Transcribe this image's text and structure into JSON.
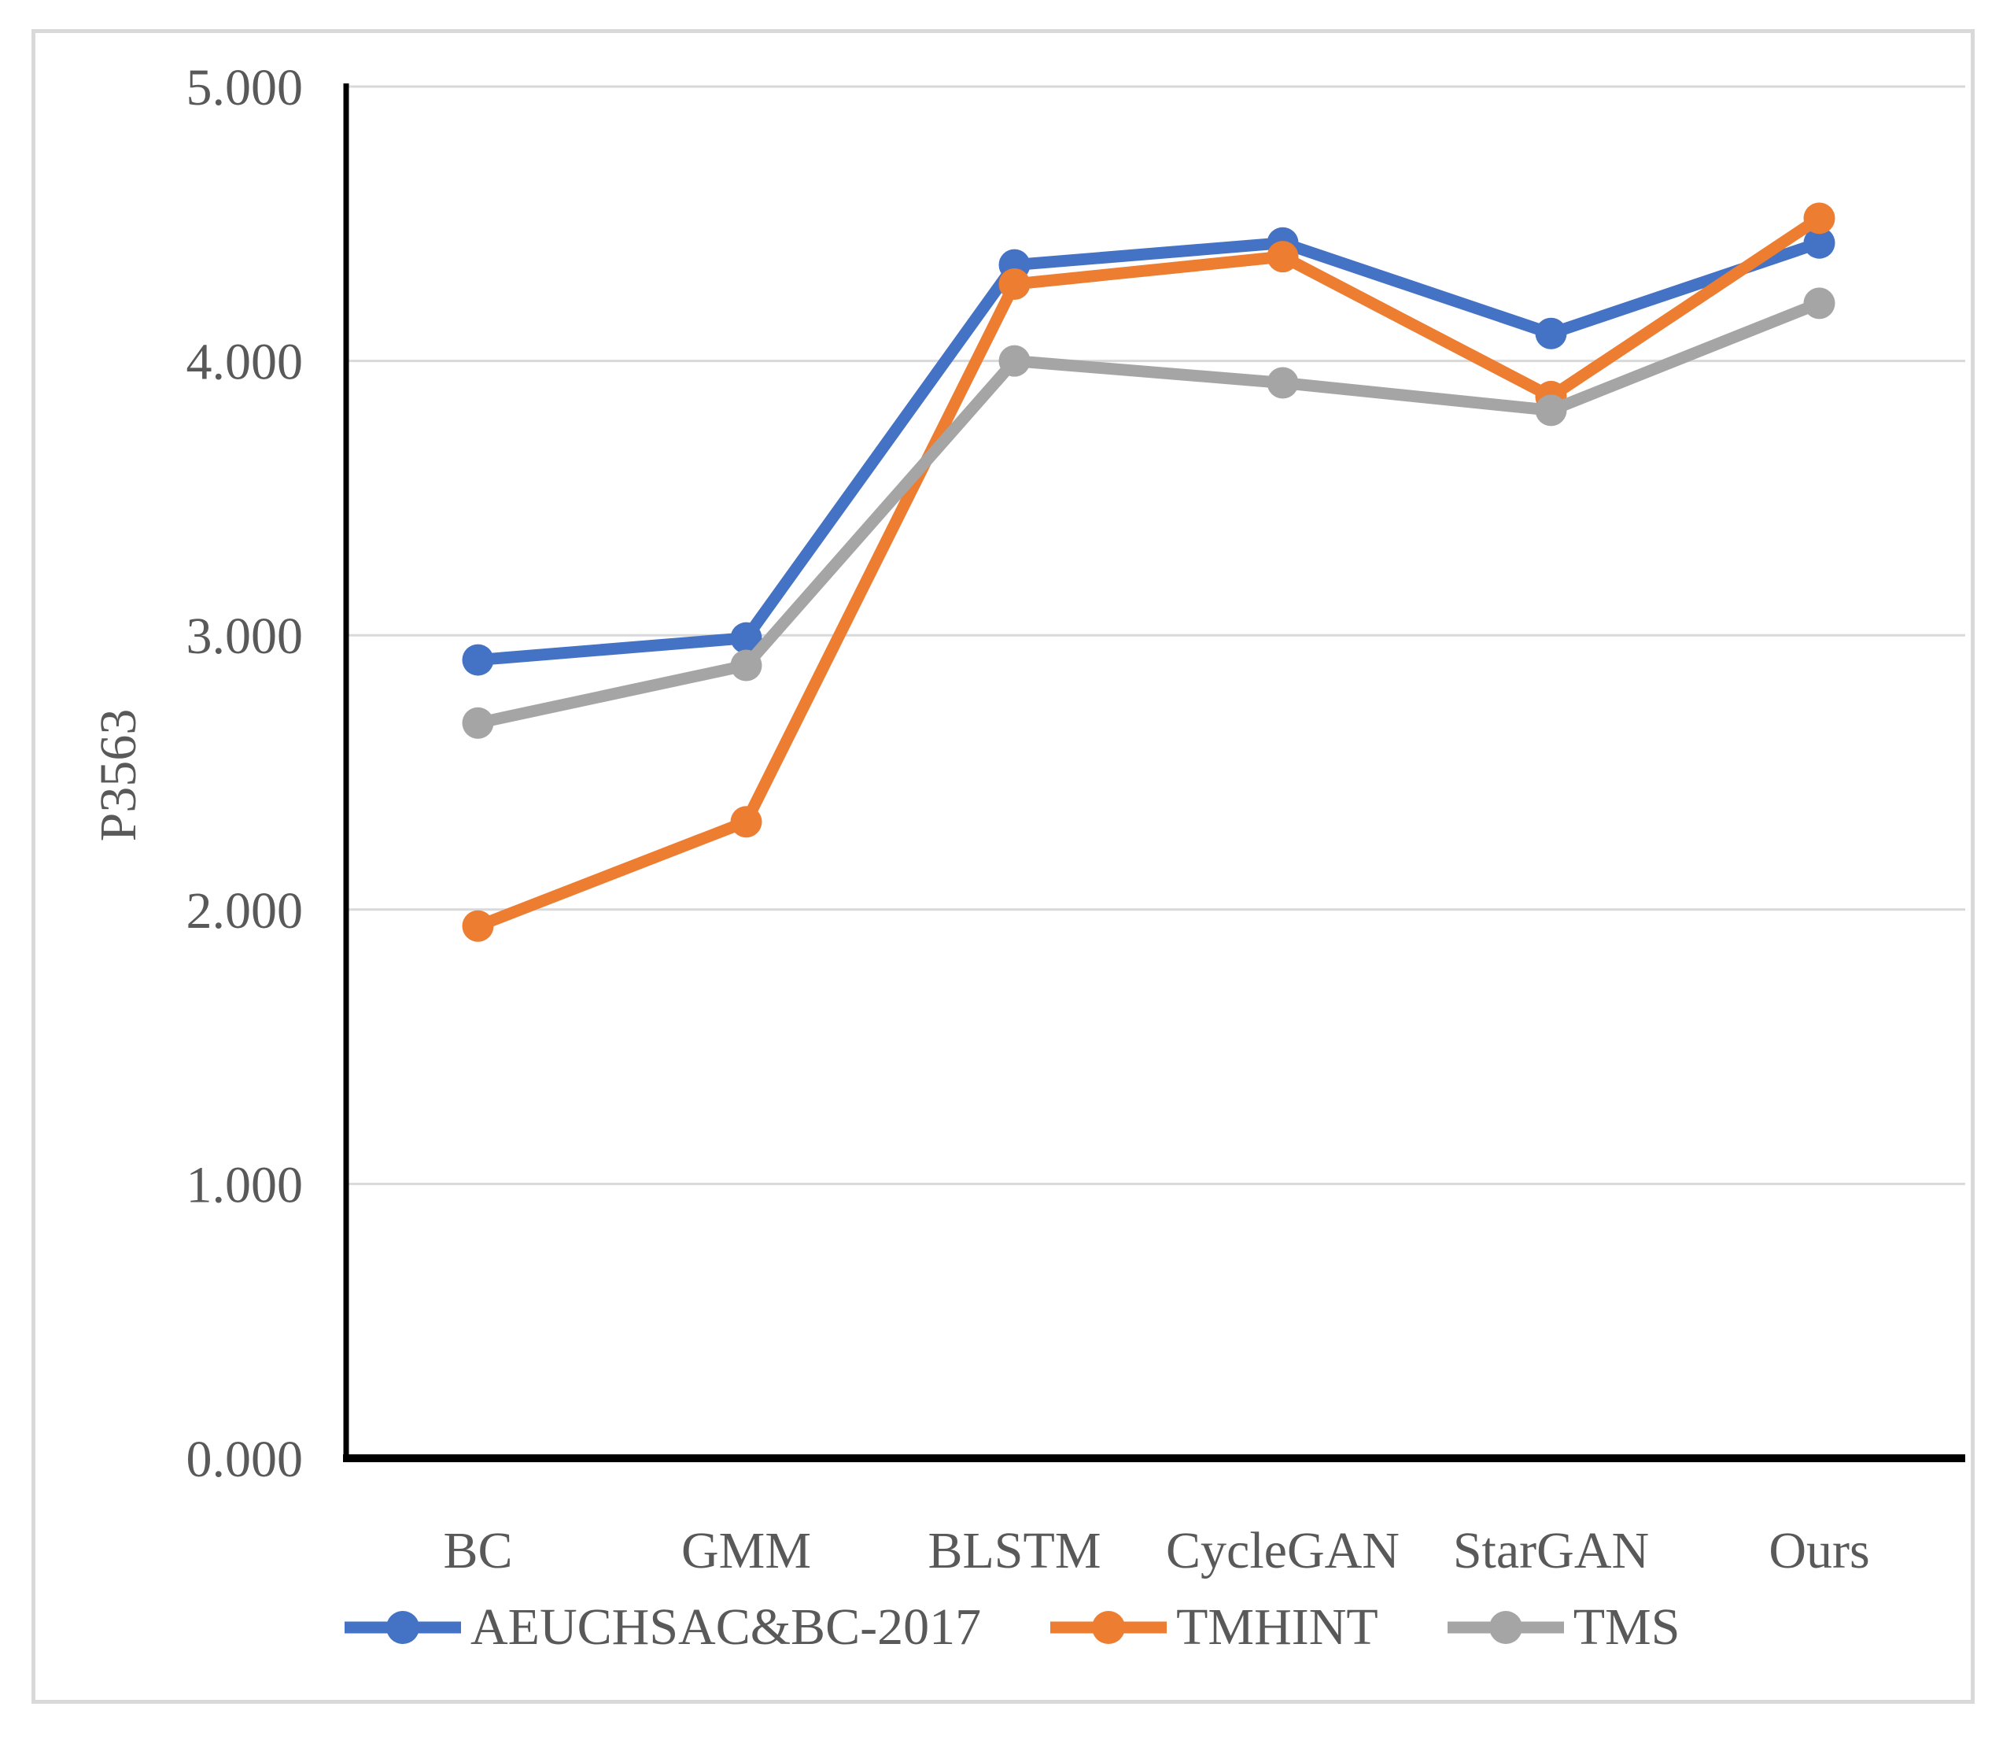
{
  "chart_data": {
    "type": "line",
    "title": "",
    "xlabel": "",
    "ylabel": "P3563",
    "categories": [
      "BC",
      "GMM",
      "BLSTM",
      "CycleGAN",
      "StarGAN",
      "Ours"
    ],
    "series": [
      {
        "name": "AEUCHSAC&BC-2017",
        "color": "#4472C4",
        "values": [
          2.91,
          2.99,
          4.35,
          4.43,
          4.1,
          4.43
        ]
      },
      {
        "name": "TMHINT",
        "color": "#ED7D31",
        "values": [
          1.94,
          2.32,
          4.28,
          4.38,
          3.87,
          4.52
        ]
      },
      {
        "name": "TMS",
        "color": "#A5A5A5",
        "values": [
          2.68,
          2.89,
          4.0,
          3.92,
          3.82,
          4.21
        ]
      }
    ],
    "ylim": [
      0,
      5
    ],
    "y_ticks": [
      "0.000",
      "1.000",
      "2.000",
      "3.000",
      "4.000",
      "5.000"
    ],
    "grid": "horizontal",
    "legend_position": "bottom"
  },
  "colors": {
    "axis": "#000000",
    "gridline": "#d9d9d9",
    "tick_text": "#595959",
    "frame_border": "#d9d9d9"
  }
}
